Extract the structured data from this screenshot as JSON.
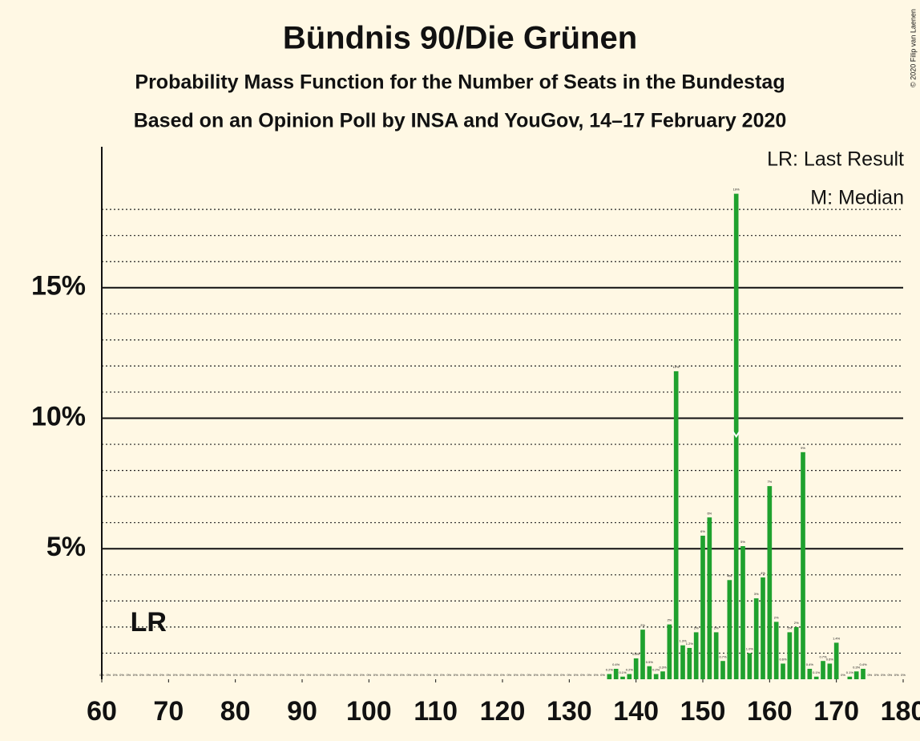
{
  "chart_data": {
    "type": "bar",
    "title": "Bündnis 90/Die Grünen",
    "subtitle": "Probability Mass Function for the Number of Seats in the Bundestag",
    "subtitle2": "Based on an Opinion Poll by INSA and YouGov, 14–17 February 2020",
    "copyright": "© 2020 Filip van Laenen",
    "legend": [
      "LR: Last Result",
      "M: Median"
    ],
    "last_result": {
      "x": 67,
      "label": "LR"
    },
    "median": {
      "x": 155
    },
    "color": "#1fa12e",
    "x": [
      60,
      61,
      62,
      63,
      64,
      65,
      66,
      67,
      68,
      69,
      70,
      71,
      72,
      73,
      74,
      75,
      76,
      77,
      78,
      79,
      80,
      81,
      82,
      83,
      84,
      85,
      86,
      87,
      88,
      89,
      90,
      91,
      92,
      93,
      94,
      95,
      96,
      97,
      98,
      99,
      100,
      101,
      102,
      103,
      104,
      105,
      106,
      107,
      108,
      109,
      110,
      111,
      112,
      113,
      114,
      115,
      116,
      117,
      118,
      119,
      120,
      121,
      122,
      123,
      124,
      125,
      126,
      127,
      128,
      129,
      130,
      131,
      132,
      133,
      134,
      135,
      136,
      137,
      138,
      139,
      140,
      141,
      142,
      143,
      144,
      145,
      146,
      147,
      148,
      149,
      150,
      151,
      152,
      153,
      154,
      155,
      156,
      157,
      158,
      159,
      160,
      161,
      162,
      163,
      164,
      165,
      166,
      167,
      168,
      169,
      170,
      171,
      172,
      173,
      174,
      175,
      176,
      177,
      178,
      179,
      180
    ],
    "values": [
      0,
      0,
      0,
      0,
      0,
      0,
      0,
      0,
      0,
      0,
      0,
      0,
      0,
      0,
      0,
      0,
      0,
      0,
      0,
      0,
      0,
      0,
      0,
      0,
      0,
      0,
      0,
      0,
      0,
      0,
      0,
      0,
      0,
      0,
      0,
      0,
      0,
      0,
      0,
      0,
      0,
      0,
      0,
      0,
      0,
      0,
      0,
      0,
      0,
      0,
      0,
      0,
      0,
      0,
      0,
      0,
      0,
      0,
      0,
      0,
      0,
      0,
      0,
      0,
      0,
      0,
      0,
      0,
      0,
      0,
      0,
      0,
      0,
      0,
      0,
      0,
      0.2,
      0.4,
      0.1,
      0.2,
      0.8,
      1.9,
      0.5,
      0.2,
      0.3,
      2.1,
      11.8,
      1.3,
      1.2,
      1.8,
      5.5,
      6.2,
      1.8,
      0.7,
      3.8,
      18.6,
      5.1,
      1.0,
      3.1,
      3.9,
      7.4,
      2.2,
      0.6,
      1.8,
      2.0,
      8.7,
      0.4,
      0.1,
      0.7,
      0.6,
      1.4,
      0,
      0.1,
      0.3,
      0.4,
      0,
      0,
      0,
      0,
      0,
      0
    ],
    "value_labels": [
      "0%",
      "0%",
      "0%",
      "0%",
      "0%",
      "0%",
      "0%",
      "0%",
      "0%",
      "0%",
      "0%",
      "0%",
      "0%",
      "0%",
      "0%",
      "0%",
      "0%",
      "0%",
      "0%",
      "0%",
      "0%",
      "0%",
      "0%",
      "0%",
      "0%",
      "0%",
      "0%",
      "0%",
      "0%",
      "0%",
      "0%",
      "0%",
      "0%",
      "0%",
      "0%",
      "0%",
      "0%",
      "0%",
      "0%",
      "0%",
      "0%",
      "0%",
      "0%",
      "0%",
      "0%",
      "0%",
      "0%",
      "0%",
      "0%",
      "0%",
      "0%",
      "0%",
      "0%",
      "0%",
      "0%",
      "0%",
      "0%",
      "0%",
      "0%",
      "0%",
      "0%",
      "0%",
      "0%",
      "0%",
      "0%",
      "0%",
      "0%",
      "0%",
      "0%",
      "0%",
      "0%",
      "0%",
      "0%",
      "0%",
      "0%",
      "0%",
      "0.2%",
      "0.4%",
      "0.1%",
      "0.2%",
      "0.8%",
      "2%",
      "0.5%",
      "0.2%",
      "0.3%",
      "2%",
      "12%",
      "1.3%",
      "1.2%",
      "2%",
      "6%",
      "6%",
      "2%",
      "0.7%",
      "4%",
      "19%",
      "5%",
      "1.0%",
      "3%",
      "4%",
      "7%",
      "2%",
      "0.6%",
      "2%",
      "2%",
      "9%",
      "0.4%",
      "0.1%",
      "0.7%",
      "0.6%",
      "1.4%",
      "0%",
      "0.1%",
      "0.3%",
      "0.4%",
      "0%",
      "0%",
      "0%",
      "0%",
      "0%",
      "0%"
    ],
    "xlim": [
      60,
      180
    ],
    "xticks": [
      60,
      70,
      80,
      90,
      100,
      110,
      120,
      130,
      140,
      150,
      160,
      170,
      180
    ],
    "ylim": [
      0,
      20.4
    ],
    "yticks": [
      {
        "value": 5,
        "label": "5%"
      },
      {
        "value": 10,
        "label": "10%"
      },
      {
        "value": 15,
        "label": "15%"
      }
    ],
    "minor_yticks": [
      1,
      2,
      3,
      4,
      6,
      7,
      8,
      9,
      11,
      12,
      13,
      14,
      16,
      17,
      18
    ],
    "grid": true
  }
}
